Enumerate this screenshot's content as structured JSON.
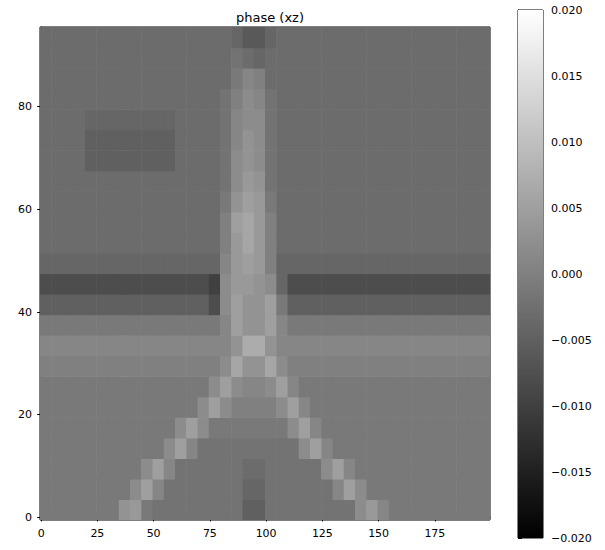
{
  "chart_data": {
    "type": "heatmap",
    "title": "phase (xz)",
    "color": "gray",
    "xlim": [
      -0.5,
      199.5
    ],
    "ylim": [
      -0.5,
      95.5
    ],
    "xticks": [
      0,
      25,
      50,
      75,
      100,
      125,
      150,
      175
    ],
    "yticks": [
      0,
      20,
      40,
      60,
      80
    ],
    "x_bins": [
      -0.5,
      4.5,
      9.5,
      14.5,
      19.5,
      24.5,
      29.5,
      34.5,
      39.5,
      44.5,
      49.5,
      54.5,
      59.5,
      64.5,
      69.5,
      74.5,
      79.5,
      84.5,
      89.5,
      94.5,
      99.5,
      104.5,
      109.5,
      114.5,
      119.5,
      124.5,
      129.5,
      134.5,
      139.5,
      144.5,
      149.5,
      154.5,
      159.5,
      164.5,
      169.5,
      174.5,
      179.5,
      184.5,
      189.5,
      194.5,
      199.5
    ],
    "y_bins": [
      -0.5,
      3.5,
      7.5,
      11.5,
      15.5,
      19.5,
      23.5,
      27.5,
      31.5,
      35.5,
      39.5,
      43.5,
      47.5,
      51.5,
      55.5,
      59.5,
      63.5,
      67.5,
      71.5,
      75.5,
      79.5,
      83.5,
      87.5,
      91.5,
      95.5
    ],
    "cells": [
      [
        -0.001,
        -0.001,
        -0.001,
        -0.001,
        -0.001,
        -0.001,
        -0.001,
        0.003,
        0.004,
        -0.001,
        -0.002,
        -0.002,
        -0.002,
        -0.002,
        -0.002,
        -0.002,
        -0.002,
        -0.002,
        -0.005,
        -0.005,
        -0.002,
        -0.002,
        -0.002,
        -0.002,
        -0.002,
        -0.002,
        -0.002,
        -0.002,
        0.002,
        0.004,
        0.001,
        -0.001,
        -0.001,
        -0.001,
        -0.001,
        -0.001,
        -0.001,
        -0.001,
        -0.001,
        -0.001
      ],
      [
        -0.001,
        -0.001,
        -0.001,
        -0.001,
        -0.001,
        -0.001,
        -0.001,
        -0.001,
        0.002,
        0.005,
        0.001,
        -0.002,
        -0.002,
        -0.002,
        -0.002,
        -0.002,
        -0.002,
        -0.002,
        -0.004,
        -0.004,
        -0.002,
        -0.002,
        -0.002,
        -0.002,
        -0.002,
        -0.002,
        0.001,
        0.005,
        0.002,
        -0.001,
        -0.001,
        -0.001,
        -0.001,
        -0.001,
        -0.001,
        -0.001,
        -0.001,
        -0.001,
        -0.001,
        -0.001
      ],
      [
        -0.001,
        -0.001,
        -0.001,
        -0.001,
        -0.001,
        -0.001,
        -0.001,
        -0.001,
        -0.001,
        0.002,
        0.005,
        0.001,
        -0.002,
        -0.002,
        -0.002,
        -0.002,
        -0.002,
        -0.002,
        -0.003,
        -0.003,
        -0.002,
        -0.002,
        -0.002,
        -0.002,
        -0.002,
        0.002,
        0.005,
        0.001,
        -0.001,
        -0.001,
        -0.001,
        -0.001,
        -0.001,
        -0.001,
        -0.001,
        -0.001,
        -0.001,
        -0.001,
        -0.001,
        -0.001
      ],
      [
        -0.001,
        -0.001,
        -0.001,
        -0.001,
        -0.001,
        -0.001,
        -0.001,
        -0.001,
        -0.001,
        -0.001,
        -0.001,
        0.002,
        0.005,
        0.001,
        -0.002,
        -0.002,
        -0.002,
        -0.002,
        -0.002,
        -0.002,
        -0.002,
        -0.002,
        -0.002,
        0.002,
        0.005,
        0.001,
        -0.001,
        -0.001,
        -0.001,
        -0.001,
        -0.001,
        -0.001,
        -0.001,
        -0.001,
        -0.001,
        -0.001,
        -0.001,
        -0.001,
        -0.001,
        -0.001
      ],
      [
        -0.001,
        -0.001,
        -0.001,
        -0.001,
        -0.001,
        -0.001,
        -0.001,
        -0.001,
        -0.001,
        -0.001,
        -0.001,
        -0.001,
        0.002,
        0.005,
        0.002,
        -0.001,
        -0.001,
        -0.001,
        -0.001,
        -0.001,
        -0.001,
        -0.001,
        0.002,
        0.005,
        0.001,
        -0.001,
        -0.001,
        -0.001,
        -0.001,
        -0.001,
        -0.001,
        -0.001,
        -0.001,
        -0.001,
        -0.001,
        -0.001,
        -0.001,
        -0.001,
        -0.001,
        -0.001
      ],
      [
        -0.001,
        -0.001,
        -0.001,
        -0.001,
        -0.001,
        -0.001,
        -0.001,
        -0.001,
        -0.001,
        -0.001,
        -0.001,
        -0.001,
        -0.001,
        -0.001,
        0.002,
        0.005,
        0.002,
        0.0,
        0.0,
        0.0,
        0.0,
        0.002,
        0.005,
        0.001,
        -0.001,
        -0.001,
        -0.001,
        -0.001,
        -0.001,
        -0.001,
        -0.001,
        -0.001,
        -0.001,
        -0.001,
        -0.001,
        -0.001,
        -0.001,
        -0.001,
        -0.001,
        -0.001
      ],
      [
        -0.001,
        -0.001,
        -0.001,
        -0.001,
        -0.001,
        -0.001,
        -0.001,
        -0.001,
        -0.001,
        -0.001,
        -0.001,
        -0.001,
        -0.001,
        -0.001,
        -0.001,
        0.002,
        0.005,
        0.002,
        0.001,
        0.001,
        0.002,
        0.005,
        0.001,
        -0.001,
        -0.001,
        -0.001,
        -0.001,
        -0.001,
        -0.001,
        -0.001,
        -0.001,
        -0.001,
        -0.001,
        -0.001,
        -0.001,
        -0.001,
        -0.001,
        -0.001,
        -0.001,
        -0.001
      ],
      [
        0.0,
        0.0,
        0.0,
        0.0,
        0.0,
        0.0,
        0.0,
        0.0,
        0.0,
        0.0,
        0.0,
        0.0,
        0.0,
        0.0,
        0.0,
        0.0,
        0.002,
        0.006,
        0.003,
        0.003,
        0.006,
        0.002,
        0.0,
        0.0,
        0.0,
        0.0,
        0.0,
        0.0,
        0.0,
        0.0,
        0.0,
        0.0,
        0.0,
        0.0,
        0.0,
        0.0,
        0.0,
        0.0,
        0.0,
        0.0
      ],
      [
        0.001,
        0.001,
        0.001,
        0.001,
        0.001,
        0.001,
        0.001,
        0.001,
        0.001,
        0.001,
        0.001,
        0.001,
        0.001,
        0.001,
        0.001,
        0.001,
        0.001,
        0.003,
        0.007,
        0.007,
        0.003,
        0.001,
        0.001,
        0.001,
        0.001,
        0.001,
        0.001,
        0.001,
        0.001,
        0.001,
        0.001,
        0.001,
        0.001,
        0.001,
        0.001,
        0.001,
        0.001,
        0.001,
        0.001,
        0.001
      ],
      [
        -0.001,
        -0.001,
        -0.001,
        -0.001,
        -0.001,
        -0.001,
        -0.001,
        -0.001,
        -0.001,
        -0.001,
        -0.001,
        -0.001,
        -0.001,
        -0.001,
        -0.001,
        -0.001,
        0.001,
        0.005,
        0.003,
        0.003,
        0.005,
        0.001,
        -0.001,
        -0.001,
        -0.001,
        -0.001,
        -0.001,
        -0.001,
        -0.001,
        -0.001,
        -0.001,
        -0.001,
        -0.001,
        -0.001,
        -0.001,
        -0.001,
        -0.001,
        -0.001,
        -0.001,
        -0.001
      ],
      [
        -0.005,
        -0.005,
        -0.005,
        -0.005,
        -0.005,
        -0.005,
        -0.005,
        -0.005,
        -0.005,
        -0.005,
        -0.005,
        -0.005,
        -0.005,
        -0.005,
        -0.005,
        -0.008,
        0.002,
        0.005,
        0.003,
        0.003,
        0.005,
        -0.001,
        -0.005,
        -0.005,
        -0.005,
        -0.005,
        -0.005,
        -0.005,
        -0.005,
        -0.005,
        -0.005,
        -0.005,
        -0.005,
        -0.005,
        -0.005,
        -0.005,
        -0.005,
        -0.005,
        -0.005,
        -0.005
      ],
      [
        -0.008,
        -0.008,
        -0.008,
        -0.008,
        -0.008,
        -0.008,
        -0.008,
        -0.008,
        -0.008,
        -0.008,
        -0.008,
        -0.008,
        -0.008,
        -0.008,
        -0.008,
        -0.01,
        0.002,
        0.004,
        0.004,
        0.003,
        0.002,
        -0.004,
        -0.008,
        -0.008,
        -0.008,
        -0.008,
        -0.008,
        -0.008,
        -0.008,
        -0.008,
        -0.008,
        -0.008,
        -0.008,
        -0.008,
        -0.008,
        -0.008,
        -0.008,
        -0.008,
        -0.008,
        -0.008
      ],
      [
        -0.004,
        -0.004,
        -0.004,
        -0.004,
        -0.004,
        -0.004,
        -0.004,
        -0.004,
        -0.004,
        -0.004,
        -0.004,
        -0.004,
        -0.004,
        -0.004,
        -0.004,
        -0.004,
        0.001,
        0.004,
        0.005,
        0.004,
        0.0,
        -0.004,
        -0.004,
        -0.004,
        -0.004,
        -0.004,
        -0.004,
        -0.004,
        -0.004,
        -0.004,
        -0.004,
        -0.004,
        -0.004,
        -0.004,
        -0.004,
        -0.004,
        -0.004,
        -0.004,
        -0.004,
        -0.004
      ],
      [
        -0.003,
        -0.003,
        -0.003,
        -0.003,
        -0.003,
        -0.003,
        -0.003,
        -0.003,
        -0.003,
        -0.003,
        -0.003,
        -0.003,
        -0.003,
        -0.003,
        -0.003,
        -0.003,
        0.0,
        0.004,
        0.006,
        0.004,
        0.0,
        -0.003,
        -0.003,
        -0.003,
        -0.003,
        -0.003,
        -0.003,
        -0.003,
        -0.003,
        -0.003,
        -0.003,
        -0.003,
        -0.003,
        -0.003,
        -0.003,
        -0.003,
        -0.003,
        -0.003,
        -0.003,
        -0.003
      ],
      [
        -0.003,
        -0.003,
        -0.003,
        -0.003,
        -0.003,
        -0.003,
        -0.003,
        -0.003,
        -0.003,
        -0.003,
        -0.003,
        -0.003,
        -0.003,
        -0.003,
        -0.003,
        -0.003,
        0.0,
        0.005,
        0.006,
        0.004,
        0.0,
        -0.003,
        -0.003,
        -0.003,
        -0.003,
        -0.003,
        -0.003,
        -0.003,
        -0.003,
        -0.003,
        -0.003,
        -0.003,
        -0.003,
        -0.003,
        -0.003,
        -0.003,
        -0.003,
        -0.003,
        -0.003,
        -0.003
      ],
      [
        -0.003,
        -0.003,
        -0.003,
        -0.003,
        -0.003,
        -0.003,
        -0.003,
        -0.003,
        -0.003,
        -0.003,
        -0.003,
        -0.003,
        -0.003,
        -0.003,
        -0.003,
        -0.003,
        -0.001,
        0.003,
        0.005,
        0.004,
        -0.001,
        -0.003,
        -0.003,
        -0.003,
        -0.003,
        -0.003,
        -0.003,
        -0.003,
        -0.003,
        -0.003,
        -0.003,
        -0.003,
        -0.003,
        -0.003,
        -0.003,
        -0.003,
        -0.003,
        -0.003,
        -0.003,
        -0.003
      ],
      [
        -0.003,
        -0.003,
        -0.003,
        -0.003,
        -0.003,
        -0.003,
        -0.003,
        -0.003,
        -0.003,
        -0.003,
        -0.003,
        -0.003,
        -0.003,
        -0.003,
        -0.003,
        -0.003,
        -0.002,
        0.002,
        0.004,
        0.003,
        -0.002,
        -0.003,
        -0.003,
        -0.003,
        -0.003,
        -0.003,
        -0.003,
        -0.003,
        -0.003,
        -0.003,
        -0.003,
        -0.003,
        -0.003,
        -0.003,
        -0.003,
        -0.003,
        -0.003,
        -0.003,
        -0.003,
        -0.003
      ],
      [
        -0.003,
        -0.003,
        -0.003,
        -0.003,
        -0.005,
        -0.005,
        -0.005,
        -0.005,
        -0.005,
        -0.005,
        -0.005,
        -0.005,
        -0.003,
        -0.003,
        -0.003,
        -0.003,
        -0.002,
        0.002,
        0.003,
        0.002,
        -0.002,
        -0.003,
        -0.003,
        -0.003,
        -0.003,
        -0.003,
        -0.003,
        -0.003,
        -0.003,
        -0.003,
        -0.003,
        -0.003,
        -0.003,
        -0.003,
        -0.003,
        -0.003,
        -0.003,
        -0.003,
        -0.003,
        -0.003
      ],
      [
        -0.003,
        -0.003,
        -0.003,
        -0.003,
        -0.005,
        -0.005,
        -0.005,
        -0.005,
        -0.005,
        -0.005,
        -0.005,
        -0.005,
        -0.003,
        -0.003,
        -0.003,
        -0.003,
        -0.002,
        0.001,
        0.003,
        0.002,
        -0.002,
        -0.003,
        -0.003,
        -0.003,
        -0.003,
        -0.003,
        -0.003,
        -0.003,
        -0.003,
        -0.003,
        -0.003,
        -0.003,
        -0.003,
        -0.003,
        -0.003,
        -0.003,
        -0.003,
        -0.003,
        -0.003,
        -0.003
      ],
      [
        -0.003,
        -0.003,
        -0.003,
        -0.003,
        -0.004,
        -0.004,
        -0.004,
        -0.004,
        -0.004,
        -0.004,
        -0.004,
        -0.004,
        -0.003,
        -0.003,
        -0.003,
        -0.003,
        -0.002,
        0.001,
        0.002,
        0.002,
        -0.002,
        -0.003,
        -0.003,
        -0.003,
        -0.003,
        -0.003,
        -0.003,
        -0.003,
        -0.003,
        -0.003,
        -0.003,
        -0.003,
        -0.003,
        -0.003,
        -0.003,
        -0.003,
        -0.003,
        -0.003,
        -0.003,
        -0.003
      ],
      [
        -0.003,
        -0.003,
        -0.003,
        -0.003,
        -0.003,
        -0.003,
        -0.003,
        -0.003,
        -0.003,
        -0.003,
        -0.003,
        -0.003,
        -0.003,
        -0.003,
        -0.003,
        -0.003,
        -0.002,
        0.0,
        0.002,
        0.001,
        -0.002,
        -0.003,
        -0.003,
        -0.003,
        -0.003,
        -0.003,
        -0.003,
        -0.003,
        -0.003,
        -0.003,
        -0.003,
        -0.003,
        -0.003,
        -0.003,
        -0.003,
        -0.003,
        -0.003,
        -0.003,
        -0.003,
        -0.003
      ],
      [
        -0.003,
        -0.003,
        -0.003,
        -0.003,
        -0.003,
        -0.003,
        -0.003,
        -0.003,
        -0.003,
        -0.003,
        -0.003,
        -0.003,
        -0.003,
        -0.003,
        -0.003,
        -0.003,
        -0.003,
        -0.001,
        0.001,
        0.0,
        -0.003,
        -0.003,
        -0.003,
        -0.003,
        -0.003,
        -0.003,
        -0.003,
        -0.003,
        -0.003,
        -0.003,
        -0.003,
        -0.003,
        -0.003,
        -0.003,
        -0.003,
        -0.003,
        -0.003,
        -0.003,
        -0.003,
        -0.003
      ],
      [
        -0.003,
        -0.003,
        -0.003,
        -0.003,
        -0.003,
        -0.003,
        -0.003,
        -0.003,
        -0.003,
        -0.003,
        -0.003,
        -0.003,
        -0.003,
        -0.003,
        -0.003,
        -0.003,
        -0.003,
        -0.002,
        -0.003,
        -0.004,
        -0.003,
        -0.003,
        -0.003,
        -0.003,
        -0.003,
        -0.003,
        -0.003,
        -0.003,
        -0.003,
        -0.003,
        -0.003,
        -0.003,
        -0.003,
        -0.003,
        -0.003,
        -0.003,
        -0.003,
        -0.003,
        -0.003,
        -0.003
      ],
      [
        -0.003,
        -0.003,
        -0.003,
        -0.003,
        -0.003,
        -0.003,
        -0.003,
        -0.003,
        -0.003,
        -0.003,
        -0.003,
        -0.003,
        -0.003,
        -0.003,
        -0.003,
        -0.003,
        -0.003,
        -0.004,
        -0.006,
        -0.006,
        -0.004,
        -0.003,
        -0.003,
        -0.003,
        -0.003,
        -0.003,
        -0.003,
        -0.003,
        -0.003,
        -0.003,
        -0.003,
        -0.003,
        -0.003,
        -0.003,
        -0.003,
        -0.003,
        -0.003,
        -0.003,
        -0.003,
        -0.003
      ]
    ],
    "colorbar": {
      "range": [
        -0.02,
        0.02
      ],
      "ticks": [
        {
          "value": -0.02,
          "label": "−0.020"
        },
        {
          "value": -0.015,
          "label": "−0.015"
        },
        {
          "value": -0.01,
          "label": "−0.010"
        },
        {
          "value": -0.005,
          "label": "−0.005"
        },
        {
          "value": 0,
          "label": "0.000"
        },
        {
          "value": 0.005,
          "label": "0.005"
        },
        {
          "value": 0.01,
          "label": "0.010"
        },
        {
          "value": 0.015,
          "label": "0.015"
        },
        {
          "value": 0.02,
          "label": "0.020"
        }
      ]
    }
  }
}
